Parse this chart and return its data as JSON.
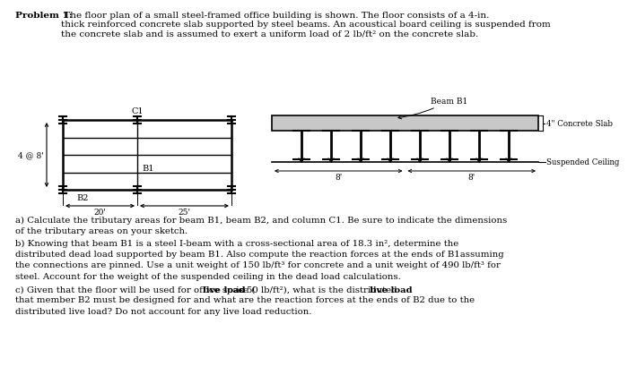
{
  "title_bold": "Problem 1:",
  "title_rest": " The floor plan of a small steel-framed office building is shown. The floor consists of a 4-in.\nthick reinforced concrete slab supported by steel beams. An acoustical board ceiling is suspended from\nthe concrete slab and is assumed to exert a uniform load of 2 lb/ft² on the concrete slab.",
  "part_a": "a) Calculate the tributary areas for beam B1, beam B2, and column C1. Be sure to indicate the dimensions\nof the tributary areas on your sketch.",
  "part_b_plain": "b) Knowing that beam B1 is a steel I-beam with a cross-sectional area of 18.3 in², determine the\ndistributed dead load supported by beam B1. Also compute the reaction forces at the ends of B1assuming\nthe connections are pinned. Use a unit weight of 150 lb/ft³ for concrete and a unit weight of 490 lb/ft³ for\nsteel. Account for the weight of the suspended ceiling in the dead load calculations.",
  "part_c_intro": "c) Given that the floor will be used for office space (",
  "part_c_bold": "live load",
  "part_c_mid": " is 50 lb/ft²), what is the distributed ",
  "part_c_bold2": "live load",
  "part_c_end": "\nthat member B2 must be designed for and what are the reaction forces at the ends of B2 due to the\ndistributed live load? Do not account for any live load reduction.",
  "label_C1": "C1",
  "label_B1": "B1",
  "label_B2": "B2",
  "label_4at8": "4 @ 8'",
  "label_20": "20'",
  "label_25": "25'",
  "label_8a": "8'",
  "label_8b": "8'",
  "label_beam_b1": "Beam B1",
  "label_concrete": "4\" Concrete Slab",
  "label_ceiling": "Suspended Ceiling",
  "bg_color": "#ffffff",
  "text_color": "#000000",
  "slab_color": "#c8c8c8"
}
